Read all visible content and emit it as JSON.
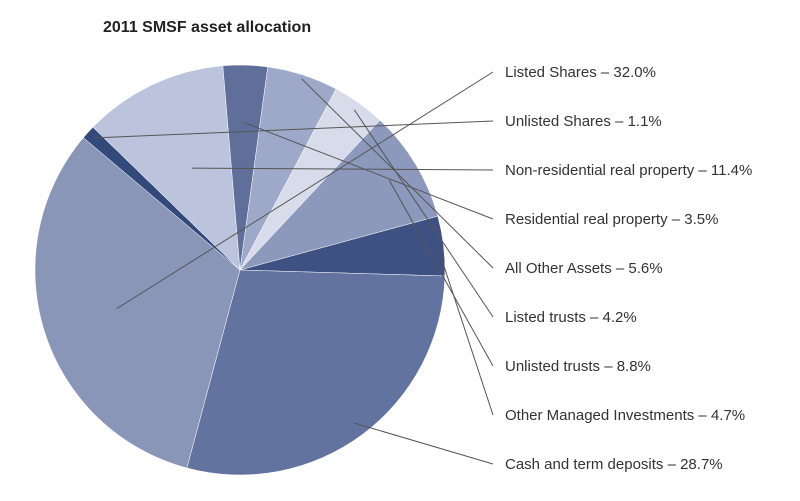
{
  "chart_data": {
    "type": "pie",
    "title": "2011 SMSF asset allocation",
    "slices": [
      {
        "label": "Listed Shares – 32.0%",
        "value": 32.0,
        "color": "#8a96b8"
      },
      {
        "label": "Unlisted Shares – 1.1%",
        "value": 1.1,
        "color": "#33497a"
      },
      {
        "label": "Non-residential real property – 11.4%",
        "value": 11.4,
        "color": "#bcc3dc"
      },
      {
        "label": "Residential real property – 3.5%",
        "value": 3.5,
        "color": "#5f6f9a"
      },
      {
        "label": "All Other Assets – 5.6%",
        "value": 5.6,
        "color": "#9ea8c8"
      },
      {
        "label": "Listed trusts – 4.2%",
        "value": 4.2,
        "color": "#d8dcea"
      },
      {
        "label": "Unlisted trusts – 8.8%",
        "value": 8.8,
        "color": "#8c98bc"
      },
      {
        "label": "Other Managed Investments – 4.7%",
        "value": 4.7,
        "color": "#3e5183"
      },
      {
        "label": "Cash and term deposits – 28.7%",
        "value": 28.7,
        "color": "#6373a0"
      }
    ],
    "legend": "right"
  }
}
